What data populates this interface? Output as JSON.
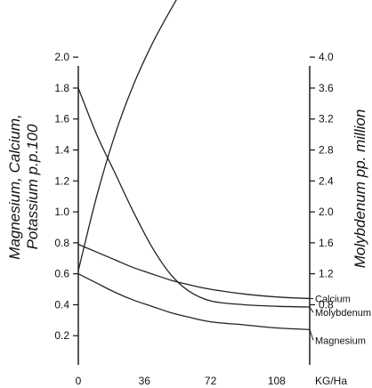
{
  "chart_data": {
    "type": "line",
    "title": "",
    "xlabel": "KG/Ha",
    "ylabel_left": [
      "Magnesium, Calcium,",
      "Potassium  p.p.100"
    ],
    "ylabel_right": "Molybdenum  pp. million",
    "x_ticks": [
      "0",
      "36",
      "72",
      "108"
    ],
    "left_ticks": [
      "0.2",
      "0.4",
      "0.6",
      "0.8",
      "1.0",
      "1.2",
      "1.4",
      "1.6",
      "1.8",
      "2.0"
    ],
    "right_ticks": [
      "0.8",
      "1.2",
      "1.6",
      "2.0",
      "2.4",
      "2.8",
      "3.2",
      "3.6",
      "4.0"
    ],
    "xlim": [
      0,
      126
    ],
    "left_ylim": [
      0,
      2.3
    ],
    "right_ylim": [
      0,
      4.6
    ],
    "grid": false,
    "series": [
      {
        "name": "Potassium",
        "axis": "left",
        "x": [
          0,
          10,
          20,
          30,
          40,
          50,
          60,
          68,
          80,
          95,
          110
        ],
        "values": [
          0.62,
          1.1,
          1.5,
          1.82,
          2.08,
          2.3,
          2.5,
          2.62,
          2.74,
          2.83,
          2.89
        ]
      },
      {
        "name": "Calcium",
        "axis": "left",
        "x": [
          0,
          10,
          20,
          30,
          40,
          50,
          60,
          72,
          90,
          108,
          126
        ],
        "values": [
          0.79,
          0.74,
          0.69,
          0.64,
          0.6,
          0.56,
          0.53,
          0.5,
          0.47,
          0.45,
          0.44
        ]
      },
      {
        "name": "Molybdenum",
        "axis": "right",
        "x": [
          0,
          10,
          20,
          30,
          40,
          50,
          60,
          72,
          90,
          108,
          126
        ],
        "values": [
          3.6,
          3.0,
          2.5,
          2.0,
          1.55,
          1.2,
          0.98,
          0.85,
          0.8,
          0.78,
          0.77
        ]
      },
      {
        "name": "Magnesium",
        "axis": "left",
        "x": [
          0,
          10,
          20,
          30,
          40,
          50,
          60,
          72,
          90,
          108,
          126
        ],
        "values": [
          0.6,
          0.54,
          0.48,
          0.43,
          0.39,
          0.35,
          0.32,
          0.29,
          0.27,
          0.25,
          0.24
        ]
      }
    ],
    "label_text": {
      "Potassium": "Potassium",
      "Calcium": "Calcium",
      "Molybdenum": "Molybdenum",
      "Magnesium": "Magnesium"
    }
  }
}
